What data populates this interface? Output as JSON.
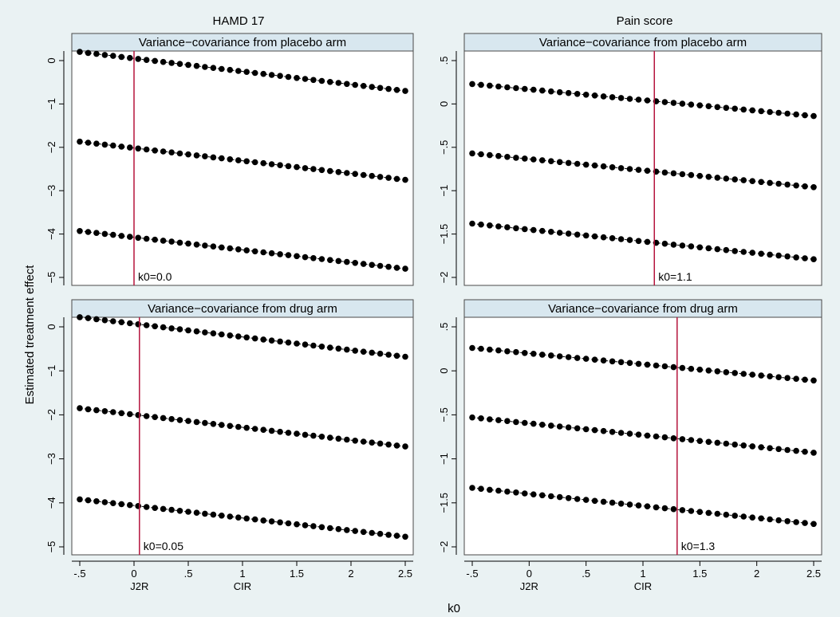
{
  "figure": {
    "ylabel": "Estimated treatment effect",
    "xlabel": "k0",
    "column_titles": [
      "HAMD 17",
      "Pain score"
    ]
  },
  "chart_data": [
    {
      "type": "scatter",
      "title": "Variance−covariance from placebo arm",
      "column_title": "HAMD 17",
      "x": {
        "start": -0.5,
        "stop": 2.5,
        "n": 40
      },
      "xlim": [
        -0.5,
        2.5
      ],
      "ylim": [
        -5,
        0
      ],
      "xticks": [
        {
          "v": -0.5,
          "t": "-.5"
        },
        {
          "v": 0,
          "t": "0"
        },
        {
          "v": 0.5,
          "t": ".5"
        },
        {
          "v": 1,
          "t": "1"
        },
        {
          "v": 1.5,
          "t": "1.5"
        },
        {
          "v": 2,
          "t": "2"
        },
        {
          "v": 2.5,
          "t": "2.5"
        }
      ],
      "yticks": [
        {
          "v": 0,
          "t": "0"
        },
        {
          "v": -1,
          "t": "−1"
        },
        {
          "v": -2,
          "t": "−2"
        },
        {
          "v": -3,
          "t": "−3"
        },
        {
          "v": -4,
          "t": "−4"
        },
        {
          "v": -5,
          "t": "−5"
        }
      ],
      "series": [
        {
          "values_at_ends": [
            0.2,
            -0.7
          ]
        },
        {
          "values_at_ends": [
            -1.87,
            -2.75
          ]
        },
        {
          "values_at_ends": [
            -3.93,
            -4.8
          ]
        }
      ],
      "refline": {
        "x": 0.0,
        "label": "k0=0.0",
        "color": "#b5143c"
      }
    },
    {
      "type": "scatter",
      "title": "Variance−covariance from placebo arm",
      "column_title": "Pain score",
      "x": {
        "start": -0.5,
        "stop": 2.5,
        "n": 40
      },
      "xlim": [
        -0.5,
        2.5
      ],
      "ylim": [
        -2,
        0.5
      ],
      "xticks": [
        {
          "v": -0.5,
          "t": "-.5"
        },
        {
          "v": 0,
          "t": "0"
        },
        {
          "v": 0.5,
          "t": ".5"
        },
        {
          "v": 1,
          "t": "1"
        },
        {
          "v": 1.5,
          "t": "1.5"
        },
        {
          "v": 2,
          "t": "2"
        },
        {
          "v": 2.5,
          "t": "2.5"
        }
      ],
      "yticks": [
        {
          "v": 0.5,
          "t": ".5"
        },
        {
          "v": 0,
          "t": "0"
        },
        {
          "v": -0.5,
          "t": "−.5"
        },
        {
          "v": -1,
          "t": "−1"
        },
        {
          "v": -1.5,
          "t": "−1.5"
        },
        {
          "v": -2,
          "t": "−2"
        }
      ],
      "series": [
        {
          "values_at_ends": [
            0.23,
            -0.14
          ]
        },
        {
          "values_at_ends": [
            -0.57,
            -0.96
          ]
        },
        {
          "values_at_ends": [
            -1.38,
            -1.79
          ]
        }
      ],
      "refline": {
        "x": 1.1,
        "label": "k0=1.1",
        "color": "#b5143c"
      }
    },
    {
      "type": "scatter",
      "title": "Variance−covariance from drug arm",
      "column_title": "HAMD 17",
      "x": {
        "start": -0.5,
        "stop": 2.5,
        "n": 40
      },
      "xlim": [
        -0.5,
        2.5
      ],
      "ylim": [
        -5,
        0
      ],
      "xticks": [
        {
          "v": -0.5,
          "t": "-.5"
        },
        {
          "v": 0,
          "t": "0"
        },
        {
          "v": 0.5,
          "t": ".5"
        },
        {
          "v": 1,
          "t": "1"
        },
        {
          "v": 1.5,
          "t": "1.5"
        },
        {
          "v": 2,
          "t": "2"
        },
        {
          "v": 2.5,
          "t": "2.5"
        }
      ],
      "yticks": [
        {
          "v": 0,
          "t": "0"
        },
        {
          "v": -1,
          "t": "−1"
        },
        {
          "v": -2,
          "t": "−2"
        },
        {
          "v": -3,
          "t": "−3"
        },
        {
          "v": -4,
          "t": "−4"
        },
        {
          "v": -5,
          "t": "−5"
        }
      ],
      "series": [
        {
          "values_at_ends": [
            0.22,
            -0.68
          ]
        },
        {
          "values_at_ends": [
            -1.85,
            -2.72
          ]
        },
        {
          "values_at_ends": [
            -3.92,
            -4.77
          ]
        }
      ],
      "refline": {
        "x": 0.05,
        "label": "k0=0.05",
        "color": "#b5143c"
      },
      "xlabels_extra": [
        {
          "v": 0.05,
          "t": "J2R"
        },
        {
          "v": 1.0,
          "t": "CIR"
        }
      ]
    },
    {
      "type": "scatter",
      "title": "Variance−covariance from drug arm",
      "column_title": "Pain score",
      "x": {
        "start": -0.5,
        "stop": 2.5,
        "n": 40
      },
      "xlim": [
        -0.5,
        2.5
      ],
      "ylim": [
        -2,
        0.5
      ],
      "xticks": [
        {
          "v": -0.5,
          "t": "-.5"
        },
        {
          "v": 0,
          "t": "0"
        },
        {
          "v": 0.5,
          "t": ".5"
        },
        {
          "v": 1,
          "t": "1"
        },
        {
          "v": 1.5,
          "t": "1.5"
        },
        {
          "v": 2,
          "t": "2"
        },
        {
          "v": 2.5,
          "t": "2.5"
        }
      ],
      "yticks": [
        {
          "v": 0.5,
          "t": ".5"
        },
        {
          "v": 0,
          "t": "0"
        },
        {
          "v": -0.5,
          "t": "−.5"
        },
        {
          "v": -1,
          "t": "−1"
        },
        {
          "v": -1.5,
          "t": "−1.5"
        },
        {
          "v": -2,
          "t": "−2"
        }
      ],
      "series": [
        {
          "values_at_ends": [
            0.26,
            -0.11
          ]
        },
        {
          "values_at_ends": [
            -0.53,
            -0.93
          ]
        },
        {
          "values_at_ends": [
            -1.33,
            -1.74
          ]
        }
      ],
      "refline": {
        "x": 1.3,
        "label": "k0=1.3",
        "color": "#b5143c"
      },
      "xlabels_extra": [
        {
          "v": 0.0,
          "t": "J2R"
        },
        {
          "v": 1.0,
          "t": "CIR"
        }
      ]
    }
  ]
}
